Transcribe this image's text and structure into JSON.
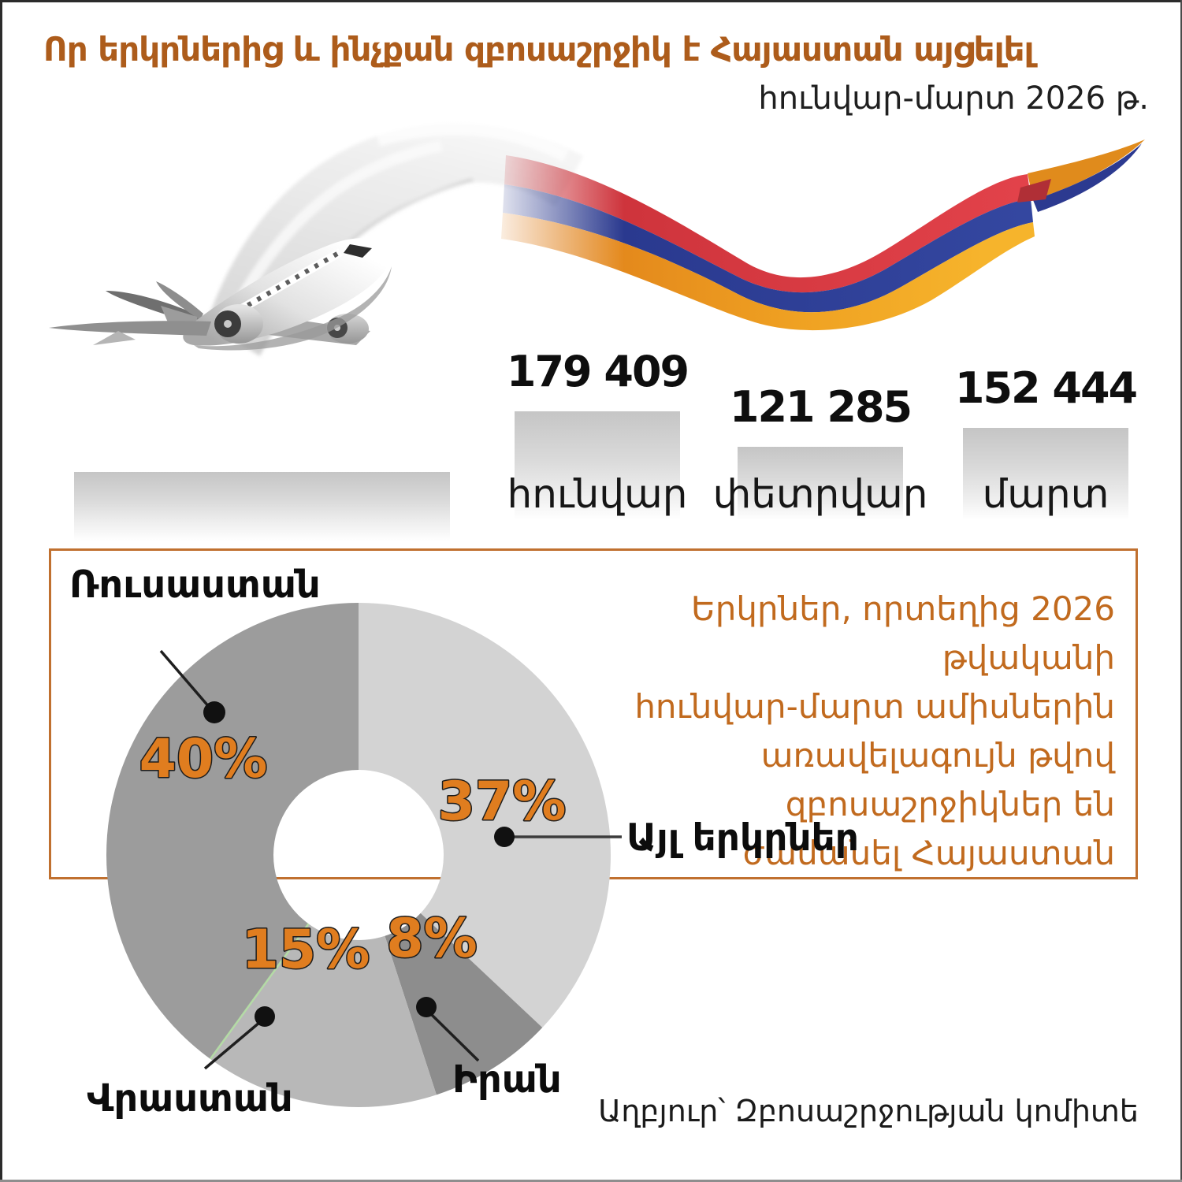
{
  "header": {
    "title": "Որ երկրներից և ինչքան զբոսաշրջիկ է Հայաստան այցելել",
    "subtitle": "հունվար-մարտ 2026 թ."
  },
  "chart_data": [
    {
      "type": "bar",
      "title": "",
      "xlabel": "",
      "ylabel": "",
      "categories": [
        "հունվար",
        "փետրվար",
        "մարտ"
      ],
      "values": [
        179409,
        121285,
        152444
      ],
      "value_labels": [
        "179 409",
        "121 285",
        "152 444"
      ],
      "bar_color": "#c5c5c5",
      "bar_style": "vertical gradient fading to white at base",
      "grid": false
    },
    {
      "type": "pie",
      "subtype": "donut",
      "title": "",
      "direction": "clockwise",
      "start_angle_deg": 0,
      "segments": [
        {
          "label": "Այլ երկրներ",
          "value": 37,
          "pct_label": "37%",
          "color": "#d3d3d3"
        },
        {
          "label": "Իրան",
          "value": 8,
          "pct_label": "8%",
          "color": "#8d8d8d"
        },
        {
          "label": "Վրաստան",
          "value": 15,
          "pct_label": "15%",
          "color": "#b8b8b8"
        },
        {
          "label": "Ռուսաստան",
          "value": 40,
          "pct_label": "40%",
          "color": "#9c9c9c"
        }
      ],
      "pct_label_color": "#e07d1f",
      "legend_position": "callout labels with dots"
    }
  ],
  "info_box": {
    "lines": [
      "Երկրներ, որտեղից 2026 թվականի",
      "հունվար-մարտ ամիսներին",
      "առավելագույն թվով",
      "զբոսաշրջիկներ են",
      "ժամանել Հայաստան"
    ],
    "border_color": "#c0702f",
    "text_color": "#c16a1e"
  },
  "source": {
    "text": "Աղբյուր՝ Զբոսաշրջության կոմիտե"
  },
  "flag_colors": {
    "red": "#d6383e",
    "blue": "#2c3f94",
    "orange": "#f0a227"
  },
  "title_color": "#ad5c1b"
}
